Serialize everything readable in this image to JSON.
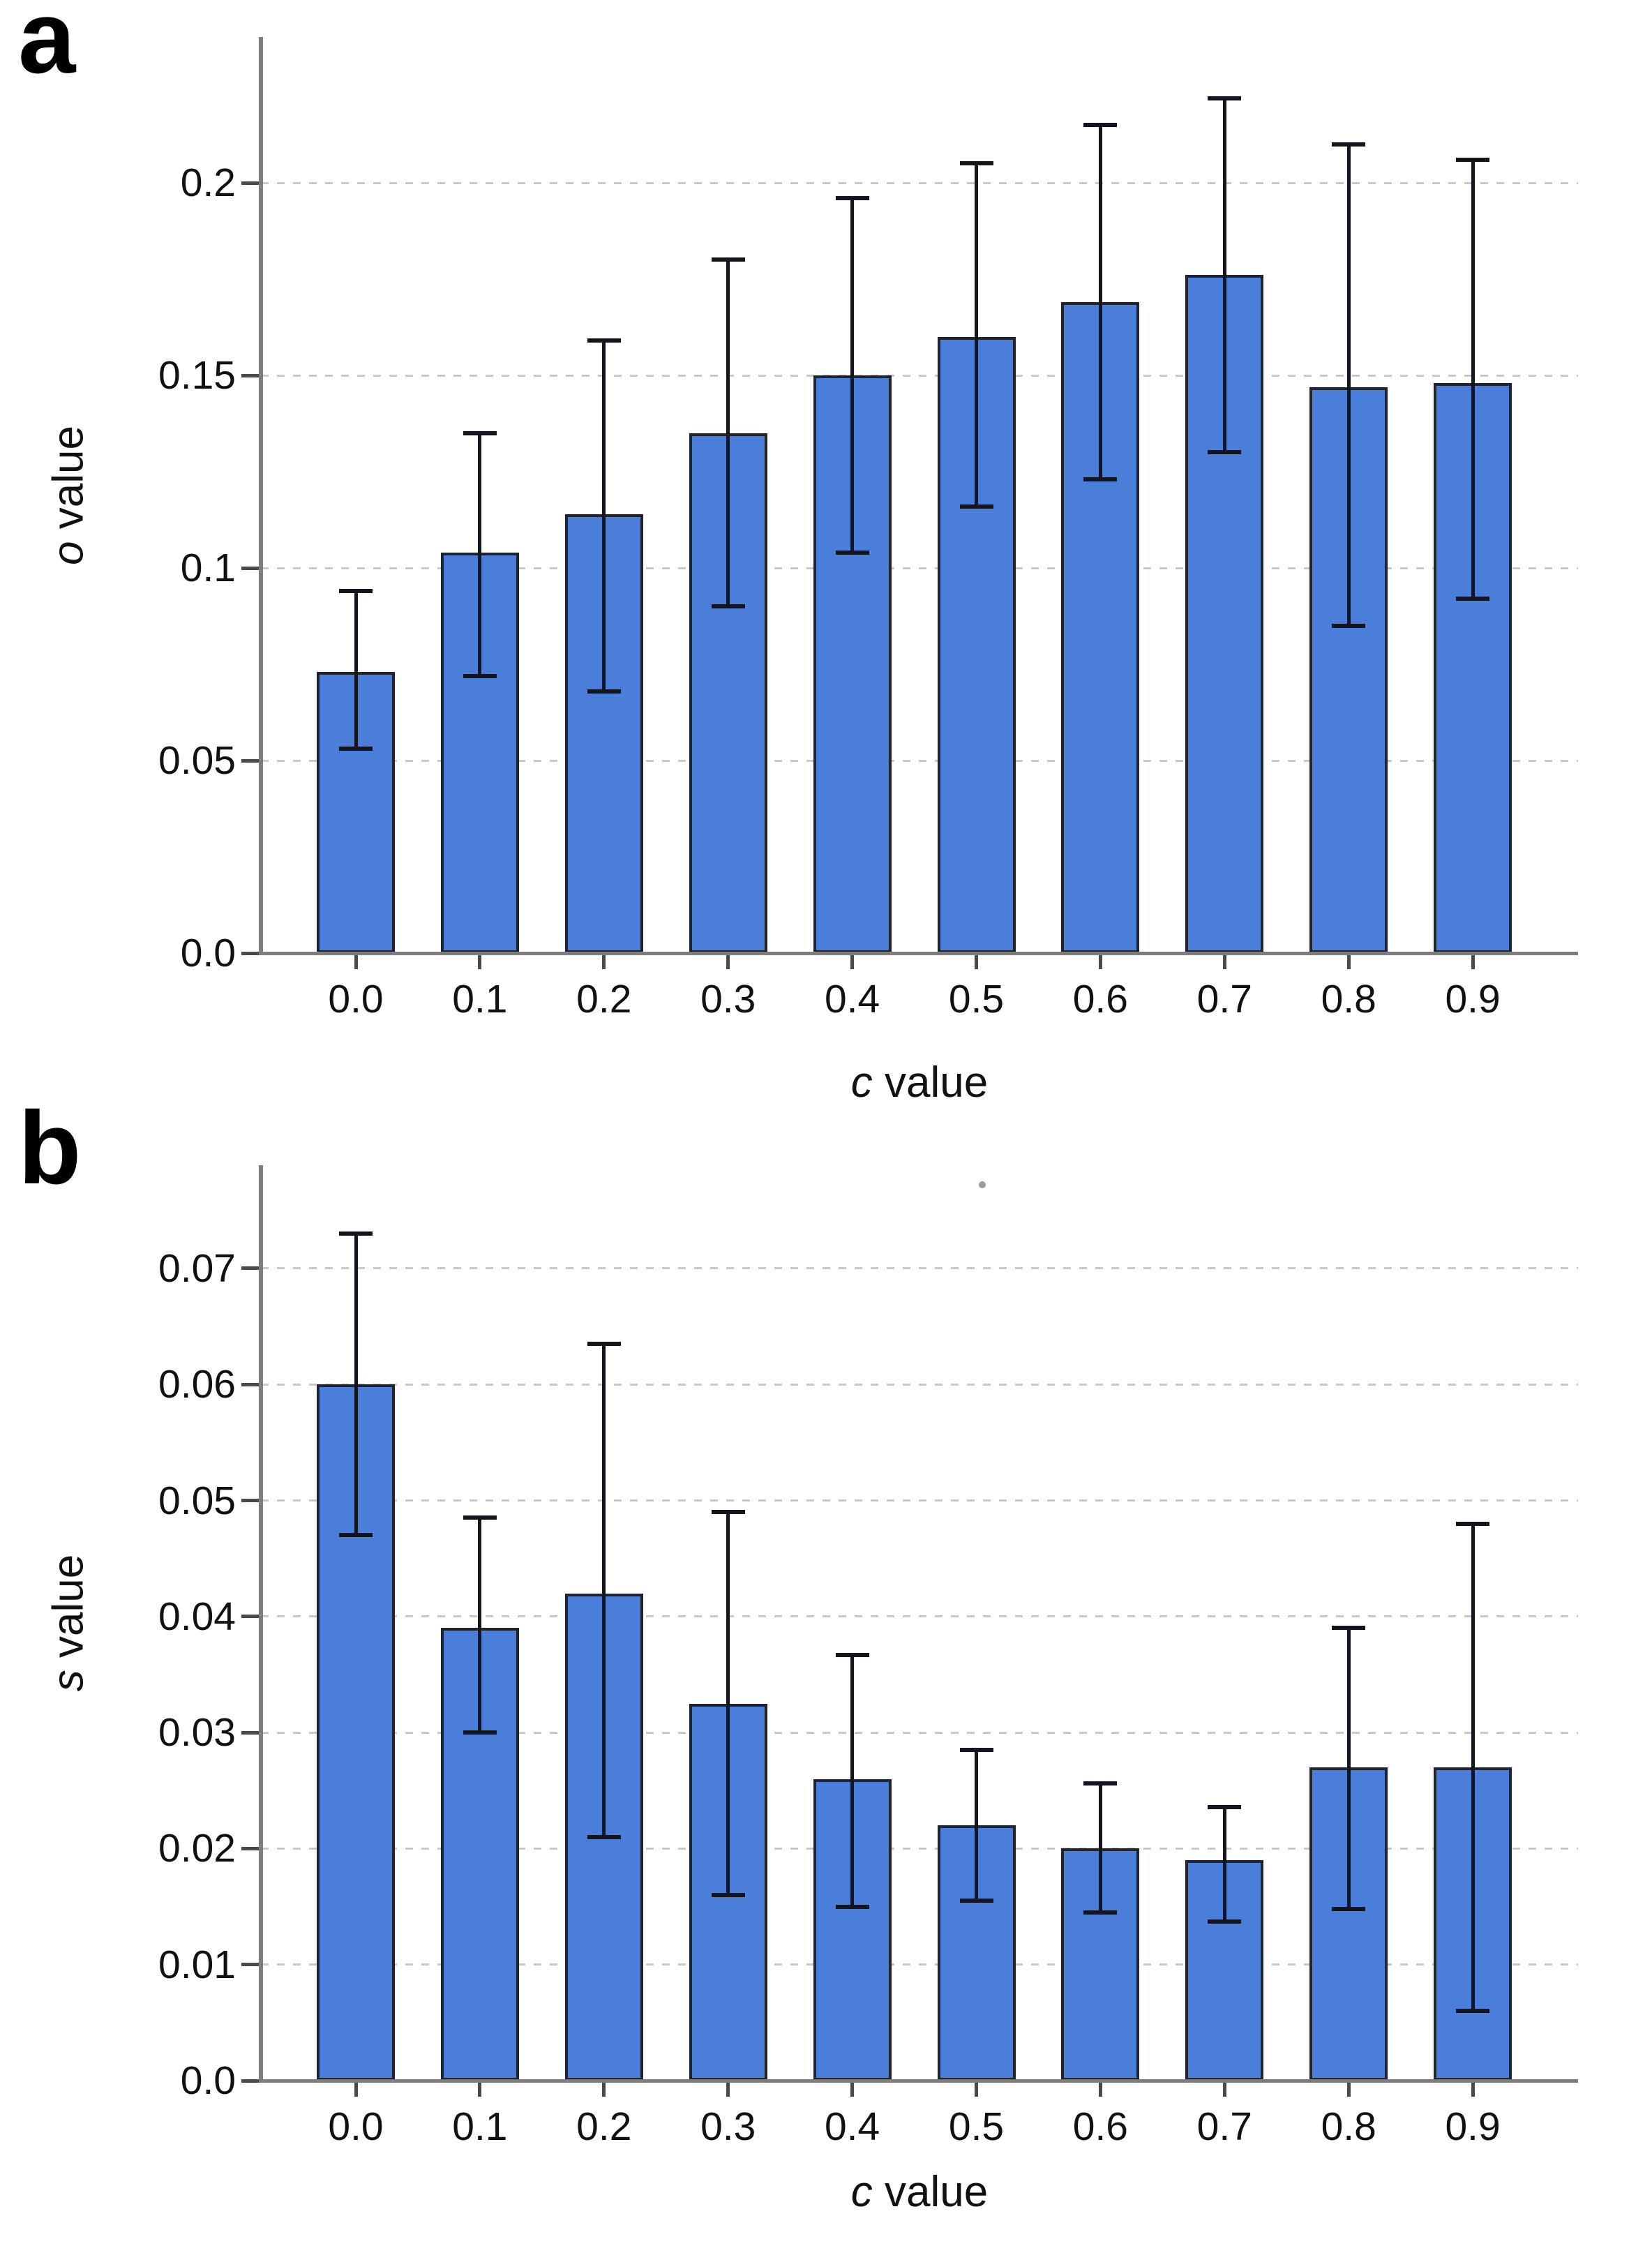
{
  "figure": {
    "background": "#ffffff",
    "text_color": "#111111",
    "axis_color": "#7d7d7d",
    "gridline_color": "#c9c9c9"
  },
  "chart_data": [
    {
      "type": "bar",
      "panel_label": "a",
      "title": "",
      "xlabel": "c value",
      "ylabel": "o value",
      "categories": [
        "0.0",
        "0.1",
        "0.2",
        "0.3",
        "0.4",
        "0.5",
        "0.6",
        "0.7",
        "0.8",
        "0.9"
      ],
      "values": [
        0.073,
        0.104,
        0.114,
        0.135,
        0.15,
        0.16,
        0.169,
        0.176,
        0.147,
        0.148
      ],
      "error_low": [
        0.053,
        0.072,
        0.068,
        0.09,
        0.104,
        0.116,
        0.123,
        0.13,
        0.085,
        0.092
      ],
      "error_high": [
        0.094,
        0.135,
        0.159,
        0.18,
        0.196,
        0.205,
        0.215,
        0.222,
        0.21,
        0.206
      ],
      "ylim": [
        0,
        0.238
      ],
      "yticks": [
        0,
        0.05,
        0.1,
        0.15,
        0.2
      ],
      "ytick_labels": [
        "0.0",
        "0.05",
        "0.1",
        "0.15",
        "0.2"
      ],
      "grid": "horizontal dashed, legend none",
      "bar_color": "#4A7ED8",
      "bar_edge_color": "#1F2430",
      "error_color": "#15151F"
    },
    {
      "type": "bar",
      "panel_label": "b",
      "title": "",
      "xlabel": "c value",
      "ylabel": "s value",
      "categories": [
        "0.0",
        "0.1",
        "0.2",
        "0.3",
        "0.4",
        "0.5",
        "0.6",
        "0.7",
        "0.8",
        "0.9"
      ],
      "values": [
        0.06,
        0.039,
        0.042,
        0.0325,
        0.026,
        0.022,
        0.02,
        0.019,
        0.027,
        0.027
      ],
      "error_low": [
        0.047,
        0.03,
        0.021,
        0.016,
        0.015,
        0.0155,
        0.0145,
        0.0137,
        0.0148,
        0.006
      ],
      "error_high": [
        0.073,
        0.0485,
        0.0635,
        0.049,
        0.0367,
        0.0285,
        0.0256,
        0.0236,
        0.039,
        0.048
      ],
      "ylim": [
        0,
        0.0789
      ],
      "yticks": [
        0,
        0.01,
        0.02,
        0.03,
        0.04,
        0.05,
        0.06,
        0.07
      ],
      "ytick_labels": [
        "0.0",
        "0.01",
        "0.02",
        "0.03",
        "0.04",
        "0.05",
        "0.06",
        "0.07"
      ],
      "grid": "horizontal dashed, legend none",
      "bar_color": "#4A7ED8",
      "bar_edge_color": "#1F2430",
      "error_color": "#15151F"
    }
  ],
  "artifact_dot": {
    "color": "#9b9b9b"
  }
}
